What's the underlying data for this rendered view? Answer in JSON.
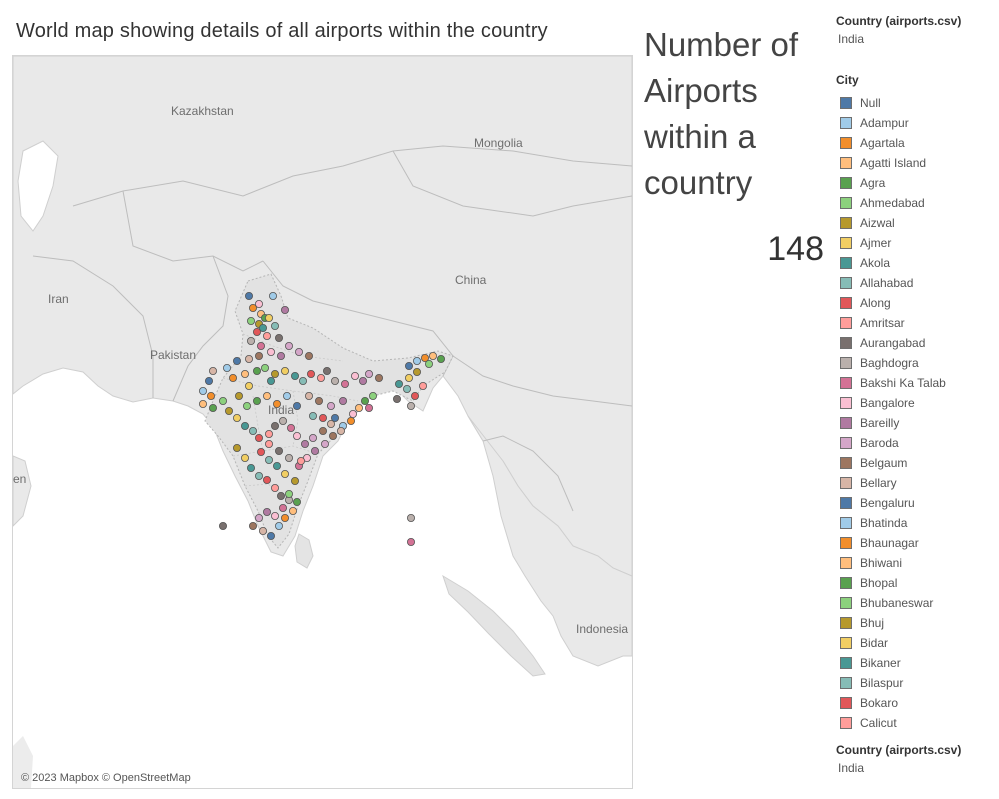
{
  "title": "World map showing details of all airports within the country",
  "kpi": {
    "title": "Number of Airports within a country",
    "value": "148"
  },
  "map": {
    "labels": {
      "kazakhstan": "Kazakhstan",
      "mongolia": "Mongolia",
      "china": "China",
      "iran": "Iran",
      "pakistan": "Pakistan",
      "india": "India",
      "indonesia": "Indonesia",
      "partial_left": "en"
    },
    "attribution": "© 2023 Mapbox © OpenStreetMap",
    "marker_colors": [
      "#4e79a7",
      "#a0cbe8",
      "#f28e2b",
      "#ffbe7d",
      "#59a14f",
      "#8cd17d",
      "#b6992d",
      "#f1ce63",
      "#499894",
      "#86bcb6",
      "#e15759",
      "#ff9d9a",
      "#79706e",
      "#bab0ac",
      "#d37295",
      "#fabfd2",
      "#b07aa1",
      "#d4a6c8",
      "#9d7660",
      "#d7b5a6"
    ]
  },
  "legend_top": {
    "header": "Country (airports.csv)",
    "value": "India"
  },
  "city_legend": {
    "header": "City",
    "items": [
      {
        "label": "Null",
        "color": "#4e79a7"
      },
      {
        "label": "Adampur",
        "color": "#a0cbe8"
      },
      {
        "label": "Agartala",
        "color": "#f28e2b"
      },
      {
        "label": "Agatti Island",
        "color": "#ffbe7d"
      },
      {
        "label": "Agra",
        "color": "#59a14f"
      },
      {
        "label": "Ahmedabad",
        "color": "#8cd17d"
      },
      {
        "label": "Aizwal",
        "color": "#b6992d"
      },
      {
        "label": "Ajmer",
        "color": "#f1ce63"
      },
      {
        "label": "Akola",
        "color": "#499894"
      },
      {
        "label": "Allahabad",
        "color": "#86bcb6"
      },
      {
        "label": "Along",
        "color": "#e15759"
      },
      {
        "label": "Amritsar",
        "color": "#ff9d9a"
      },
      {
        "label": "Aurangabad",
        "color": "#79706e"
      },
      {
        "label": "Baghdogra",
        "color": "#bab0ac"
      },
      {
        "label": "Bakshi Ka Talab",
        "color": "#d37295"
      },
      {
        "label": "Bangalore",
        "color": "#fabfd2"
      },
      {
        "label": "Bareilly",
        "color": "#b07aa1"
      },
      {
        "label": "Baroda",
        "color": "#d4a6c8"
      },
      {
        "label": "Belgaum",
        "color": "#9d7660"
      },
      {
        "label": "Bellary",
        "color": "#d7b5a6"
      },
      {
        "label": "Bengaluru",
        "color": "#4e79a7"
      },
      {
        "label": "Bhatinda",
        "color": "#a0cbe8"
      },
      {
        "label": "Bhaunagar",
        "color": "#f28e2b"
      },
      {
        "label": "Bhiwani",
        "color": "#ffbe7d"
      },
      {
        "label": "Bhopal",
        "color": "#59a14f"
      },
      {
        "label": "Bhubaneswar",
        "color": "#8cd17d"
      },
      {
        "label": "Bhuj",
        "color": "#b6992d"
      },
      {
        "label": "Bidar",
        "color": "#f1ce63"
      },
      {
        "label": "Bikaner",
        "color": "#499894"
      },
      {
        "label": "Bilaspur",
        "color": "#86bcb6"
      },
      {
        "label": "Bokaro",
        "color": "#e15759"
      },
      {
        "label": "Calicut",
        "color": "#ff9d9a"
      }
    ]
  },
  "legend_bottom": {
    "header": "Country (airports.csv)",
    "value": "India"
  }
}
